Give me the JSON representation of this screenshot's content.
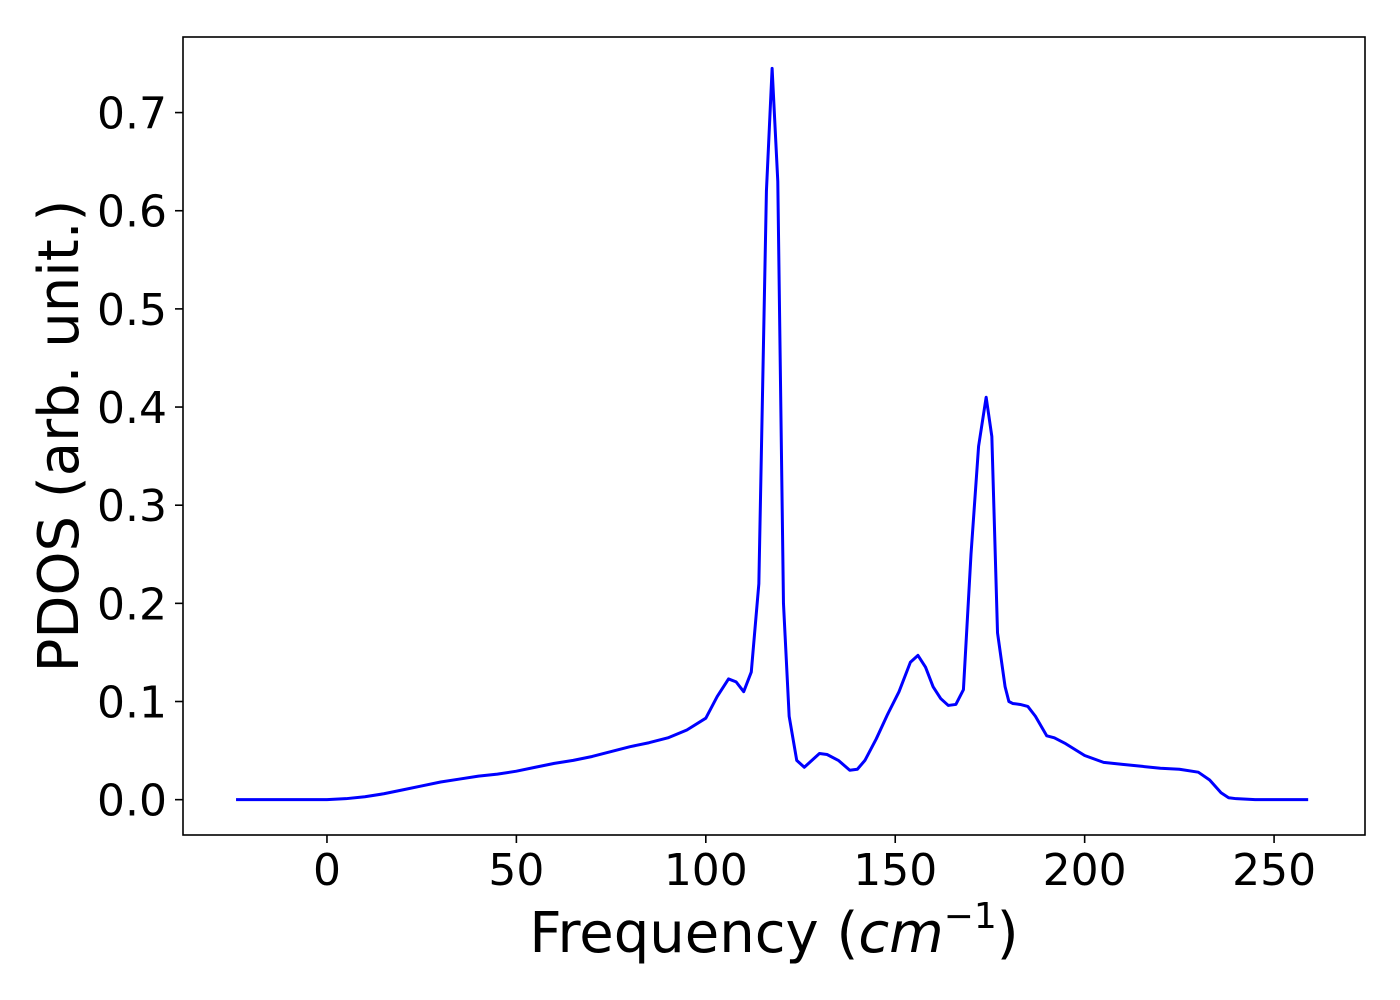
{
  "chart_data": {
    "type": "line",
    "title": "",
    "xlabel": "Frequency (",
    "xlabel_unit": "cm",
    "xlabel_exponent": "−1",
    "xlabel_close": ")",
    "ylabel": "PDOS (arb. unit.)",
    "xlim": [
      -38,
      274
    ],
    "ylim": [
      -0.036,
      0.777
    ],
    "xticks": [
      0,
      50,
      100,
      150,
      200,
      250
    ],
    "yticks": [
      0.0,
      0.1,
      0.2,
      0.3,
      0.4,
      0.5,
      0.6,
      0.7
    ],
    "xtick_labels": [
      "0",
      "50",
      "100",
      "150",
      "200",
      "250"
    ],
    "ytick_labels": [
      "0.0",
      "0.1",
      "0.2",
      "0.3",
      "0.4",
      "0.5",
      "0.6",
      "0.7"
    ],
    "grid": false,
    "series": [
      {
        "color": "#0000ff",
        "x": [
          -24,
          0,
          5,
          10,
          15,
          20,
          25,
          30,
          35,
          40,
          45,
          50,
          55,
          60,
          65,
          70,
          75,
          80,
          85,
          90,
          95,
          100,
          103,
          106,
          108,
          110,
          112,
          114,
          116,
          117.5,
          119,
          120.5,
          122,
          124,
          126,
          128,
          130,
          132,
          135,
          138,
          140,
          142,
          145,
          148,
          151,
          154,
          156,
          158,
          160,
          162,
          164,
          166,
          168,
          170,
          172,
          174,
          175.5,
          177,
          179,
          180,
          181,
          183,
          185,
          187,
          190,
          192,
          195,
          200,
          205,
          210,
          215,
          220,
          225,
          230,
          233,
          236,
          238,
          240,
          245,
          250,
          259
        ],
        "y": [
          0.0,
          0.0,
          0.001,
          0.003,
          0.006,
          0.01,
          0.014,
          0.018,
          0.021,
          0.024,
          0.026,
          0.029,
          0.033,
          0.037,
          0.04,
          0.044,
          0.049,
          0.054,
          0.058,
          0.063,
          0.071,
          0.083,
          0.105,
          0.123,
          0.12,
          0.11,
          0.13,
          0.22,
          0.62,
          0.745,
          0.63,
          0.2,
          0.085,
          0.04,
          0.033,
          0.04,
          0.047,
          0.046,
          0.04,
          0.03,
          0.031,
          0.04,
          0.062,
          0.087,
          0.11,
          0.14,
          0.147,
          0.135,
          0.115,
          0.103,
          0.096,
          0.097,
          0.112,
          0.25,
          0.36,
          0.41,
          0.37,
          0.17,
          0.115,
          0.1,
          0.098,
          0.097,
          0.095,
          0.085,
          0.065,
          0.063,
          0.057,
          0.045,
          0.038,
          0.036,
          0.034,
          0.032,
          0.031,
          0.028,
          0.02,
          0.007,
          0.002,
          0.001,
          0.0,
          0.0,
          0.0
        ]
      }
    ]
  }
}
